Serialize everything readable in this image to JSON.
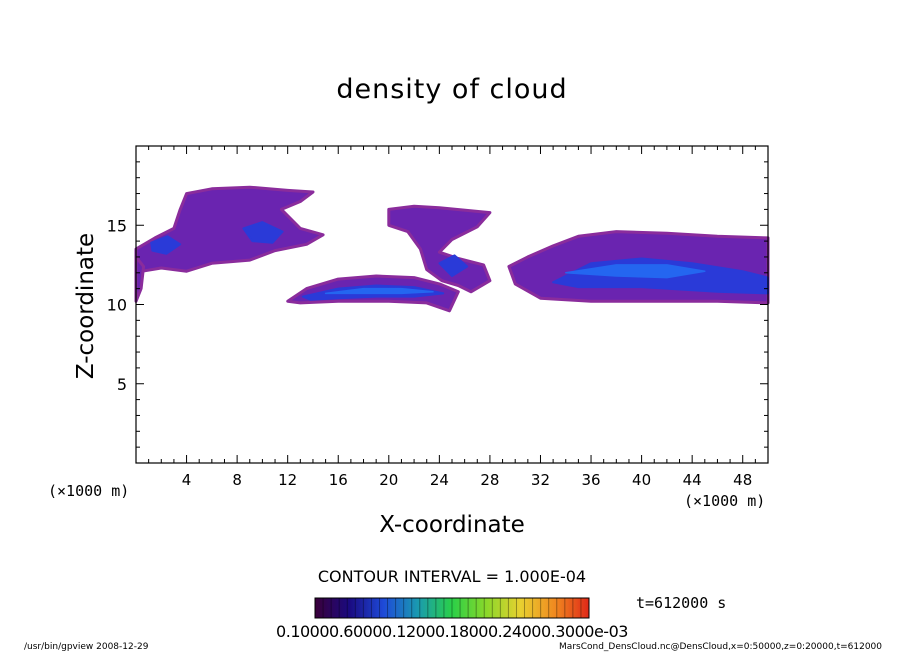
{
  "chart_data": {
    "type": "heatmap",
    "title": "density of cloud",
    "xlabel": "X-coordinate",
    "ylabel": "Z-coordinate",
    "x_unit": "(×1000 m)",
    "y_unit": "(×1000 m)",
    "xlim": [
      0,
      50
    ],
    "ylim": [
      0,
      20
    ],
    "x_ticks": [
      4,
      8,
      12,
      16,
      20,
      24,
      28,
      32,
      36,
      40,
      44,
      48
    ],
    "y_ticks": [
      5,
      10,
      15
    ],
    "grid": false,
    "contour_interval": "CONTOUR INTERVAL = 1.000E-04",
    "time_label": "t=612000 s",
    "colorbar_labels": "0.10000.60000.12000.18000.24000.3000e-03",
    "colorbar_colors": [
      "#3a003a",
      "#1a0a80",
      "#1e4ad8",
      "#1a9ab0",
      "#2ad048",
      "#8ad82a",
      "#e8d030",
      "#f08a20",
      "#e02818"
    ],
    "cloud_colors": {
      "edge": "#8a2c9c",
      "mid": "#6a24b0",
      "core": "#2a3ad8",
      "peak": "#2466f0"
    },
    "regions": [
      {
        "name": "upper-left cloud",
        "points": [
          [
            0,
            13.5
          ],
          [
            1.5,
            14.2
          ],
          [
            3,
            14.8
          ],
          [
            3.5,
            16
          ],
          [
            4,
            17
          ],
          [
            6,
            17.3
          ],
          [
            9,
            17.4
          ],
          [
            12,
            17.2
          ],
          [
            14,
            17.1
          ],
          [
            13,
            16.5
          ],
          [
            11.5,
            16
          ],
          [
            13,
            14.8
          ],
          [
            14.8,
            14.4
          ],
          [
            13.5,
            13.8
          ],
          [
            11,
            13.4
          ],
          [
            9,
            12.8
          ],
          [
            6,
            12.6
          ],
          [
            4,
            12.1
          ],
          [
            2,
            12.3
          ],
          [
            0.5,
            12.1
          ],
          [
            0,
            11.8
          ]
        ]
      },
      {
        "name": "left edge fragment",
        "points": [
          [
            0,
            13
          ],
          [
            0.6,
            12.4
          ],
          [
            0.4,
            11
          ],
          [
            0,
            10.2
          ]
        ]
      },
      {
        "name": "lower arc cloud",
        "points": [
          [
            12,
            10.2
          ],
          [
            13.5,
            11
          ],
          [
            16,
            11.6
          ],
          [
            19,
            11.8
          ],
          [
            22,
            11.7
          ],
          [
            24,
            11.3
          ],
          [
            25.5,
            10.8
          ],
          [
            24.8,
            9.6
          ],
          [
            23,
            10.1
          ],
          [
            20,
            10.2
          ],
          [
            16,
            10.2
          ],
          [
            13,
            10.1
          ]
        ]
      },
      {
        "name": "central plume",
        "points": [
          [
            20,
            16
          ],
          [
            22,
            16.2
          ],
          [
            24,
            16.1
          ],
          [
            28,
            15.8
          ],
          [
            27,
            14.9
          ],
          [
            25,
            14.1
          ],
          [
            24,
            13.3
          ],
          [
            25.5,
            12.9
          ],
          [
            27.5,
            12.5
          ],
          [
            28,
            11.5
          ],
          [
            26.5,
            10.8
          ],
          [
            25.5,
            11.2
          ],
          [
            24.2,
            11.5
          ],
          [
            23,
            12.2
          ],
          [
            22.5,
            13.5
          ],
          [
            21.5,
            14.6
          ],
          [
            20,
            15
          ]
        ]
      },
      {
        "name": "right cloud band",
        "points": [
          [
            29.5,
            12.4
          ],
          [
            31,
            13
          ],
          [
            33,
            13.7
          ],
          [
            35,
            14.3
          ],
          [
            38,
            14.6
          ],
          [
            42,
            14.5
          ],
          [
            46,
            14.3
          ],
          [
            50,
            14.2
          ],
          [
            50,
            10.1
          ],
          [
            46,
            10.2
          ],
          [
            40,
            10.2
          ],
          [
            36,
            10.2
          ],
          [
            32,
            10.4
          ],
          [
            30,
            11.3
          ]
        ]
      }
    ],
    "cores": [
      {
        "name": "upper-left core 1",
        "points": [
          [
            1.2,
            13.9
          ],
          [
            2.5,
            14.3
          ],
          [
            3.5,
            13.8
          ],
          [
            2.4,
            13.2
          ],
          [
            1.3,
            13.4
          ]
        ]
      },
      {
        "name": "upper-left core 2",
        "points": [
          [
            8.5,
            14.8
          ],
          [
            10,
            15.2
          ],
          [
            11.6,
            14.6
          ],
          [
            10.8,
            13.9
          ],
          [
            9.2,
            14
          ]
        ]
      },
      {
        "name": "lower arc core",
        "points": [
          [
            13.2,
            10.5
          ],
          [
            16,
            11
          ],
          [
            19,
            11.2
          ],
          [
            22,
            11.1
          ],
          [
            24.3,
            10.7
          ],
          [
            22,
            10.5
          ],
          [
            19,
            10.5
          ],
          [
            16,
            10.4
          ],
          [
            13.8,
            10.3
          ]
        ]
      },
      {
        "name": "plume core",
        "points": [
          [
            24,
            12.6
          ],
          [
            25.2,
            13.1
          ],
          [
            26.2,
            12.4
          ],
          [
            25,
            11.8
          ]
        ]
      },
      {
        "name": "right band core",
        "points": [
          [
            33,
            11.4
          ],
          [
            36,
            12.6
          ],
          [
            40,
            12.9
          ],
          [
            44,
            12.6
          ],
          [
            48,
            12.1
          ],
          [
            50,
            11.7
          ],
          [
            50,
            10.7
          ],
          [
            46,
            10.8
          ],
          [
            40,
            11.1
          ],
          [
            35,
            11.1
          ]
        ]
      }
    ],
    "peaks": [
      {
        "name": "lower arc peak",
        "points": [
          [
            15,
            10.7
          ],
          [
            18,
            11
          ],
          [
            21,
            11
          ],
          [
            23.5,
            10.8
          ],
          [
            21,
            10.7
          ],
          [
            18,
            10.7
          ]
        ]
      },
      {
        "name": "right band peak",
        "points": [
          [
            34,
            12
          ],
          [
            38,
            12.5
          ],
          [
            42,
            12.5
          ],
          [
            45,
            12.1
          ],
          [
            42,
            11.7
          ],
          [
            38,
            11.8
          ]
        ]
      }
    ]
  },
  "footer": {
    "left": "/usr/bin/gpview   2008-12-29",
    "right": "MarsCond_DensCloud.nc@DensCloud,x=0:50000,z=0:20000,t=612000"
  }
}
